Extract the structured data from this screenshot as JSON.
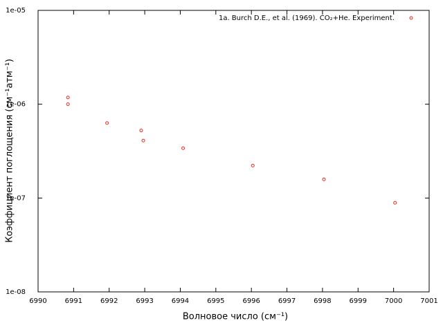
{
  "chart_data": {
    "type": "scatter",
    "xlabel": "Волновое число (см⁻¹)",
    "ylabel": "Коэффициент поглощения (см⁻¹атм⁻¹)",
    "series": [
      {
        "name": "1a. Burch D.E., et al. (1969). CO₂+He. Experiment.",
        "color": "#e8291c",
        "x": [
          6990.84,
          6990.84,
          6991.94,
          6992.9,
          6992.96,
          6994.08,
          6996.04,
          6998.04,
          7000.04
        ],
        "values": [
          1.18e-06,
          1e-06,
          6.3e-07,
          5.25e-07,
          4.1e-07,
          3.4e-07,
          2.22e-07,
          1.58e-07,
          8.9e-08
        ]
      }
    ],
    "xlim": [
      6990,
      7001
    ],
    "xticks": [
      6990,
      6991,
      6992,
      6993,
      6994,
      6995,
      6996,
      6997,
      6998,
      6999,
      7000,
      7001
    ],
    "ylim": [
      1e-08,
      1e-05
    ],
    "ylog": true,
    "yticks": [
      {
        "value": 1e-08,
        "label": "1e-08"
      },
      {
        "value": 1e-07,
        "label": "1e-07"
      },
      {
        "value": 1e-06,
        "label": "1e-06"
      },
      {
        "value": 1e-05,
        "label": "1e-05"
      }
    ],
    "legend": "top-right"
  }
}
